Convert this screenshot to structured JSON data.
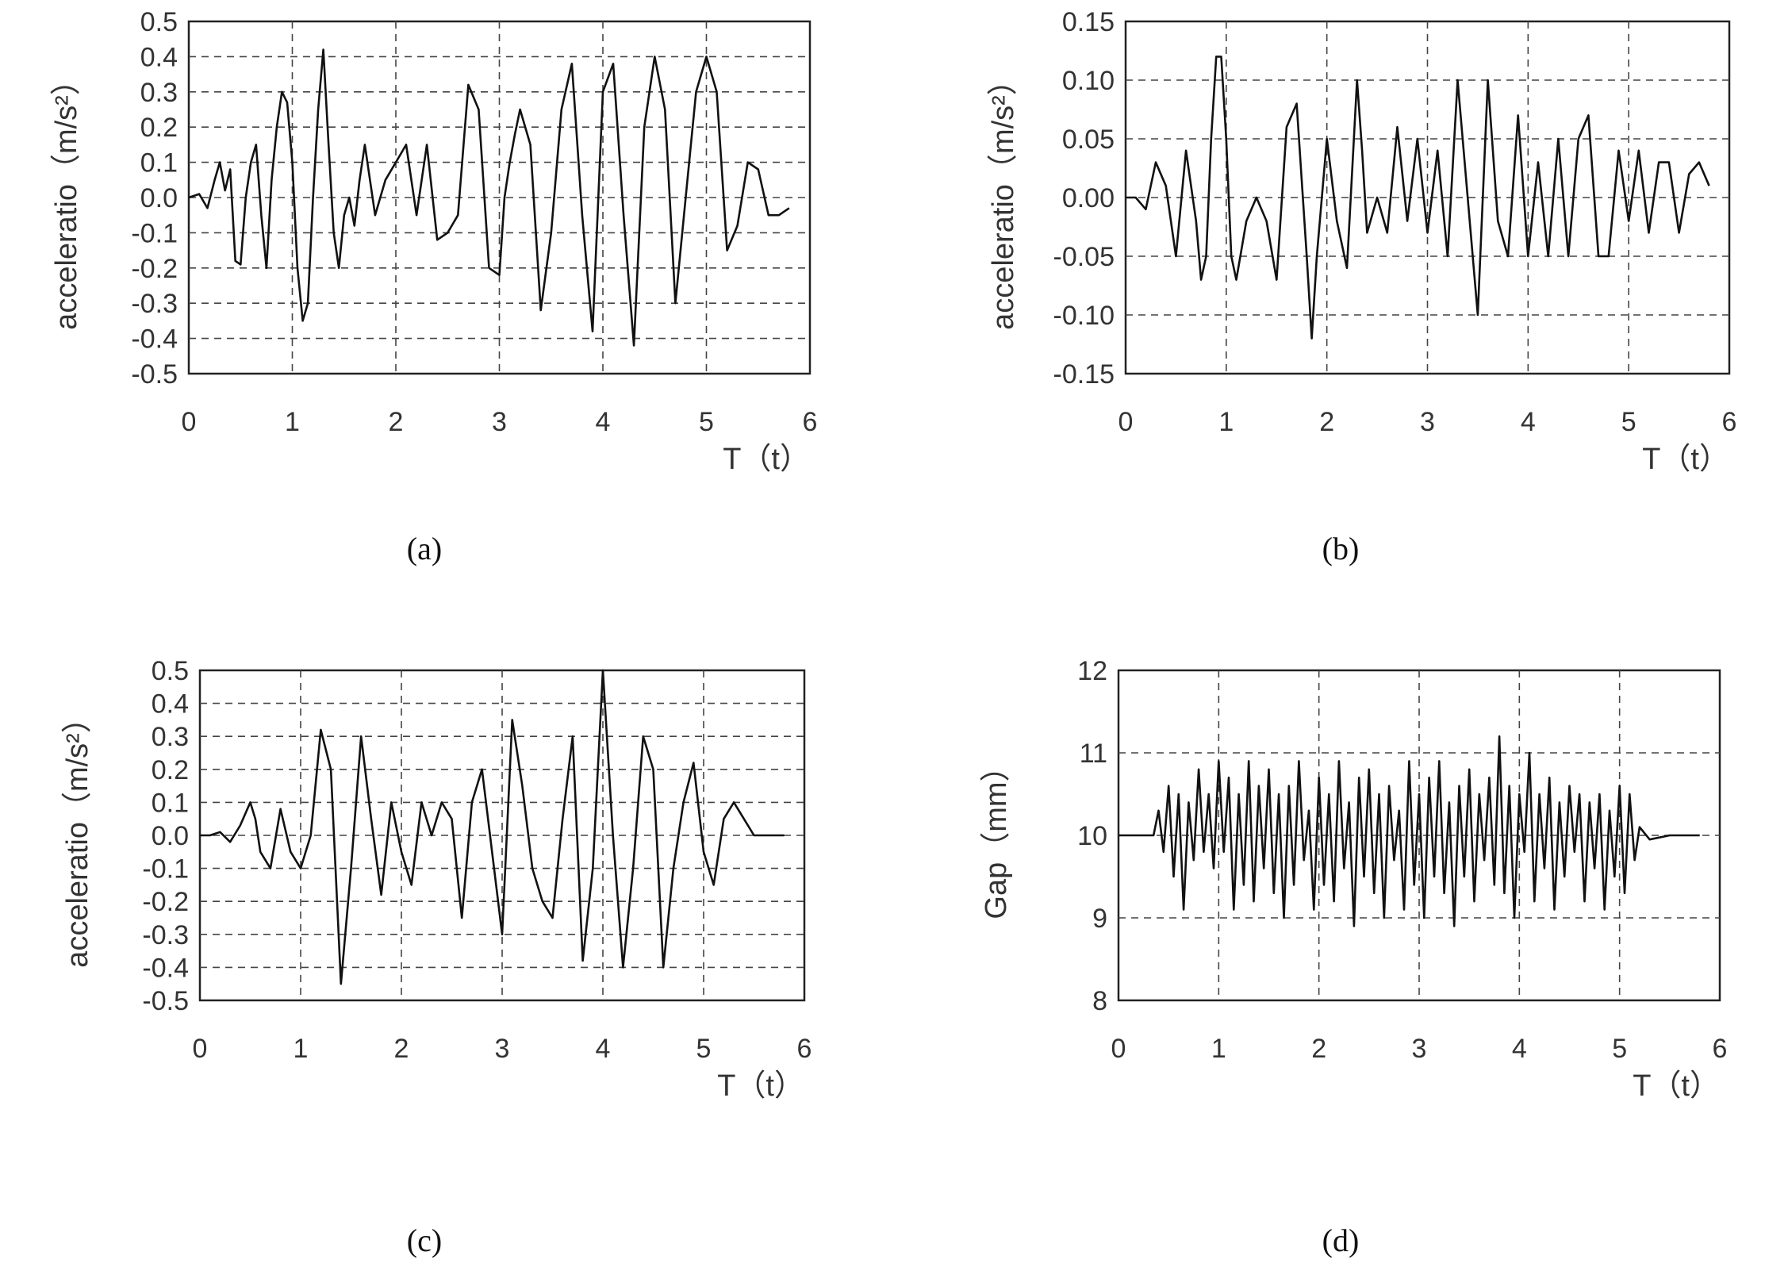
{
  "chart_data": [
    {
      "type": "line",
      "panel_label": "(a)",
      "xlabel": "T（t）",
      "ylabel": "acceleratio（m/s²）",
      "xlim": [
        0,
        6
      ],
      "ylim": [
        -0.5,
        0.5
      ],
      "x_ticks": [
        "0",
        "1",
        "2",
        "3",
        "4",
        "5",
        "6"
      ],
      "y_ticks": [
        "0.5",
        "0.4",
        "0.3",
        "0.2",
        "0.1",
        "0.0",
        "-0.1",
        "-0.2",
        "-0.3",
        "-0.4",
        "-0.5"
      ],
      "grid": true,
      "series": [
        {
          "x": [
            0,
            0.1,
            0.18,
            0.25,
            0.3,
            0.35,
            0.4,
            0.45,
            0.5,
            0.55,
            0.6,
            0.65,
            0.7,
            0.75,
            0.8,
            0.85,
            0.9,
            0.95,
            1.0,
            1.05,
            1.1,
            1.15,
            1.2,
            1.25,
            1.3,
            1.35,
            1.4,
            1.45,
            1.5,
            1.55,
            1.6,
            1.65,
            1.7,
            1.8,
            1.9,
            2.0,
            2.1,
            2.2,
            2.3,
            2.4,
            2.5,
            2.6,
            2.7,
            2.8,
            2.9,
            3.0,
            3.05,
            3.1,
            3.15,
            3.2,
            3.3,
            3.4,
            3.5,
            3.6,
            3.7,
            3.8,
            3.9,
            4.0,
            4.1,
            4.2,
            4.3,
            4.4,
            4.5,
            4.6,
            4.7,
            4.8,
            4.9,
            5.0,
            5.1,
            5.2,
            5.3,
            5.4,
            5.5,
            5.6,
            5.7,
            5.8
          ],
          "y": [
            0.0,
            0.01,
            -0.03,
            0.05,
            0.1,
            0.02,
            0.08,
            -0.18,
            -0.19,
            0.0,
            0.1,
            0.15,
            -0.05,
            -0.2,
            0.05,
            0.2,
            0.3,
            0.27,
            0.1,
            -0.2,
            -0.35,
            -0.3,
            0.0,
            0.25,
            0.42,
            0.15,
            -0.1,
            -0.2,
            -0.05,
            0.0,
            -0.08,
            0.05,
            0.15,
            -0.05,
            0.05,
            0.1,
            0.15,
            -0.05,
            0.15,
            -0.12,
            -0.1,
            -0.05,
            0.32,
            0.25,
            -0.2,
            -0.22,
            0.0,
            0.1,
            0.18,
            0.25,
            0.15,
            -0.32,
            -0.1,
            0.25,
            0.38,
            -0.05,
            -0.38,
            0.3,
            0.38,
            -0.05,
            -0.42,
            0.2,
            0.4,
            0.25,
            -0.3,
            0.0,
            0.3,
            0.4,
            0.3,
            -0.15,
            -0.08,
            0.1,
            0.08,
            -0.05,
            -0.05,
            -0.03
          ]
        }
      ]
    },
    {
      "type": "line",
      "panel_label": "(b)",
      "xlabel": "T（t）",
      "ylabel": "acceleratio（m/s²）",
      "xlim": [
        0,
        6
      ],
      "ylim": [
        -0.15,
        0.15
      ],
      "x_ticks": [
        "0",
        "1",
        "2",
        "3",
        "4",
        "5",
        "6"
      ],
      "y_ticks": [
        "0.15",
        "0.10",
        "0.05",
        "0.00",
        "-0.05",
        "-0.10",
        "-0.15"
      ],
      "grid": true,
      "series": [
        {
          "x": [
            0,
            0.1,
            0.2,
            0.3,
            0.4,
            0.5,
            0.6,
            0.7,
            0.75,
            0.8,
            0.85,
            0.9,
            0.95,
            1.0,
            1.05,
            1.1,
            1.2,
            1.3,
            1.4,
            1.5,
            1.6,
            1.7,
            1.8,
            1.85,
            1.9,
            2.0,
            2.1,
            2.2,
            2.3,
            2.35,
            2.4,
            2.5,
            2.6,
            2.7,
            2.8,
            2.9,
            3.0,
            3.1,
            3.2,
            3.3,
            3.4,
            3.5,
            3.6,
            3.7,
            3.8,
            3.9,
            4.0,
            4.1,
            4.2,
            4.3,
            4.4,
            4.5,
            4.6,
            4.7,
            4.8,
            4.9,
            5.0,
            5.1,
            5.2,
            5.3,
            5.4,
            5.5,
            5.6,
            5.7,
            5.8
          ],
          "y": [
            0.0,
            0.0,
            -0.01,
            0.03,
            0.01,
            -0.05,
            0.04,
            -0.02,
            -0.07,
            -0.05,
            0.05,
            0.12,
            0.12,
            0.05,
            -0.05,
            -0.07,
            -0.02,
            0.0,
            -0.02,
            -0.07,
            0.06,
            0.08,
            -0.05,
            -0.12,
            -0.05,
            0.05,
            -0.02,
            -0.06,
            0.1,
            0.04,
            -0.03,
            0.0,
            -0.03,
            0.06,
            -0.02,
            0.05,
            -0.03,
            0.04,
            -0.05,
            0.1,
            0.0,
            -0.1,
            0.1,
            -0.02,
            -0.05,
            0.07,
            -0.05,
            0.03,
            -0.05,
            0.05,
            -0.05,
            0.05,
            0.07,
            -0.05,
            -0.05,
            0.04,
            -0.02,
            0.04,
            -0.03,
            0.03,
            0.03,
            -0.03,
            0.02,
            0.03,
            0.01
          ]
        }
      ]
    },
    {
      "type": "line",
      "panel_label": "(c)",
      "xlabel": "T（t）",
      "ylabel": "acceleratio（m/s²）",
      "xlim": [
        0,
        6
      ],
      "ylim": [
        -0.5,
        0.5
      ],
      "x_ticks": [
        "0",
        "1",
        "2",
        "3",
        "4",
        "5",
        "6"
      ],
      "y_ticks": [
        "0.5",
        "0.4",
        "0.3",
        "0.2",
        "0.1",
        "0.0",
        "-0.1",
        "-0.2",
        "-0.3",
        "-0.4",
        "-0.5"
      ],
      "grid": true,
      "series": [
        {
          "x": [
            0,
            0.1,
            0.2,
            0.3,
            0.4,
            0.5,
            0.55,
            0.6,
            0.7,
            0.8,
            0.9,
            1.0,
            1.1,
            1.2,
            1.3,
            1.4,
            1.5,
            1.6,
            1.7,
            1.8,
            1.9,
            2.0,
            2.1,
            2.2,
            2.3,
            2.4,
            2.5,
            2.6,
            2.7,
            2.8,
            2.9,
            3.0,
            3.1,
            3.2,
            3.3,
            3.4,
            3.5,
            3.6,
            3.7,
            3.8,
            3.9,
            4.0,
            4.1,
            4.2,
            4.3,
            4.4,
            4.5,
            4.6,
            4.7,
            4.8,
            4.9,
            5.0,
            5.1,
            5.2,
            5.3,
            5.4,
            5.5,
            5.6,
            5.7,
            5.8
          ],
          "y": [
            0.0,
            0.0,
            0.01,
            -0.02,
            0.03,
            0.1,
            0.05,
            -0.05,
            -0.1,
            0.08,
            -0.05,
            -0.1,
            0.0,
            0.32,
            0.2,
            -0.45,
            -0.1,
            0.3,
            0.05,
            -0.18,
            0.1,
            -0.05,
            -0.15,
            0.1,
            0.0,
            0.1,
            0.05,
            -0.25,
            0.1,
            0.2,
            -0.05,
            -0.3,
            0.35,
            0.15,
            -0.1,
            -0.2,
            -0.25,
            0.05,
            0.3,
            -0.38,
            -0.1,
            0.5,
            0.0,
            -0.4,
            -0.1,
            0.3,
            0.2,
            -0.4,
            -0.1,
            0.1,
            0.22,
            -0.05,
            -0.15,
            0.05,
            0.1,
            0.05,
            0.0,
            0.0,
            0.0,
            0.0
          ]
        }
      ]
    },
    {
      "type": "line",
      "panel_label": "(d)",
      "xlabel": "T（t）",
      "ylabel": "Gap（mm）",
      "xlim": [
        0,
        6
      ],
      "ylim": [
        8,
        12
      ],
      "x_ticks": [
        "0",
        "1",
        "2",
        "3",
        "4",
        "5",
        "6"
      ],
      "y_ticks": [
        "12",
        "11",
        "10",
        "9",
        "8"
      ],
      "grid": true,
      "series": [
        {
          "x": [
            0,
            0.35,
            0.4,
            0.45,
            0.5,
            0.55,
            0.6,
            0.65,
            0.7,
            0.75,
            0.8,
            0.85,
            0.9,
            0.95,
            1.0,
            1.05,
            1.1,
            1.15,
            1.2,
            1.25,
            1.3,
            1.35,
            1.4,
            1.45,
            1.5,
            1.55,
            1.6,
            1.65,
            1.7,
            1.75,
            1.8,
            1.85,
            1.9,
            1.95,
            2.0,
            2.05,
            2.1,
            2.15,
            2.2,
            2.25,
            2.3,
            2.35,
            2.4,
            2.45,
            2.5,
            2.55,
            2.6,
            2.65,
            2.7,
            2.75,
            2.8,
            2.85,
            2.9,
            2.95,
            3.0,
            3.05,
            3.1,
            3.15,
            3.2,
            3.25,
            3.3,
            3.35,
            3.4,
            3.45,
            3.5,
            3.55,
            3.6,
            3.65,
            3.7,
            3.75,
            3.8,
            3.85,
            3.9,
            3.95,
            4.0,
            4.05,
            4.1,
            4.15,
            4.2,
            4.25,
            4.3,
            4.35,
            4.4,
            4.45,
            4.5,
            4.55,
            4.6,
            4.65,
            4.7,
            4.75,
            4.8,
            4.85,
            4.9,
            4.95,
            5.0,
            5.05,
            5.1,
            5.15,
            5.2,
            5.3,
            5.5,
            5.7,
            5.8
          ],
          "y": [
            10.0,
            10.0,
            10.3,
            9.8,
            10.6,
            9.5,
            10.5,
            9.1,
            10.4,
            9.7,
            10.8,
            9.8,
            10.5,
            9.6,
            10.9,
            9.8,
            10.7,
            9.1,
            10.5,
            9.4,
            10.9,
            9.2,
            10.6,
            9.6,
            10.8,
            9.3,
            10.5,
            9.0,
            10.6,
            9.4,
            10.9,
            9.7,
            10.3,
            9.1,
            10.7,
            9.4,
            10.5,
            9.2,
            10.9,
            9.6,
            10.4,
            8.9,
            10.7,
            9.5,
            10.8,
            9.3,
            10.5,
            9.0,
            10.6,
            9.7,
            10.3,
            9.1,
            10.9,
            9.4,
            10.5,
            9.0,
            10.7,
            9.5,
            10.9,
            9.3,
            10.4,
            8.9,
            10.6,
            9.5,
            10.8,
            9.2,
            10.5,
            9.7,
            10.7,
            9.4,
            11.2,
            9.3,
            10.6,
            9.0,
            10.5,
            9.8,
            11.0,
            9.2,
            10.5,
            9.6,
            10.7,
            9.1,
            10.4,
            9.5,
            10.6,
            9.8,
            10.5,
            9.2,
            10.4,
            9.6,
            10.5,
            9.1,
            10.3,
            9.5,
            10.6,
            9.3,
            10.5,
            9.7,
            10.1,
            9.95,
            10.0,
            10.0,
            10.0
          ]
        }
      ]
    }
  ]
}
